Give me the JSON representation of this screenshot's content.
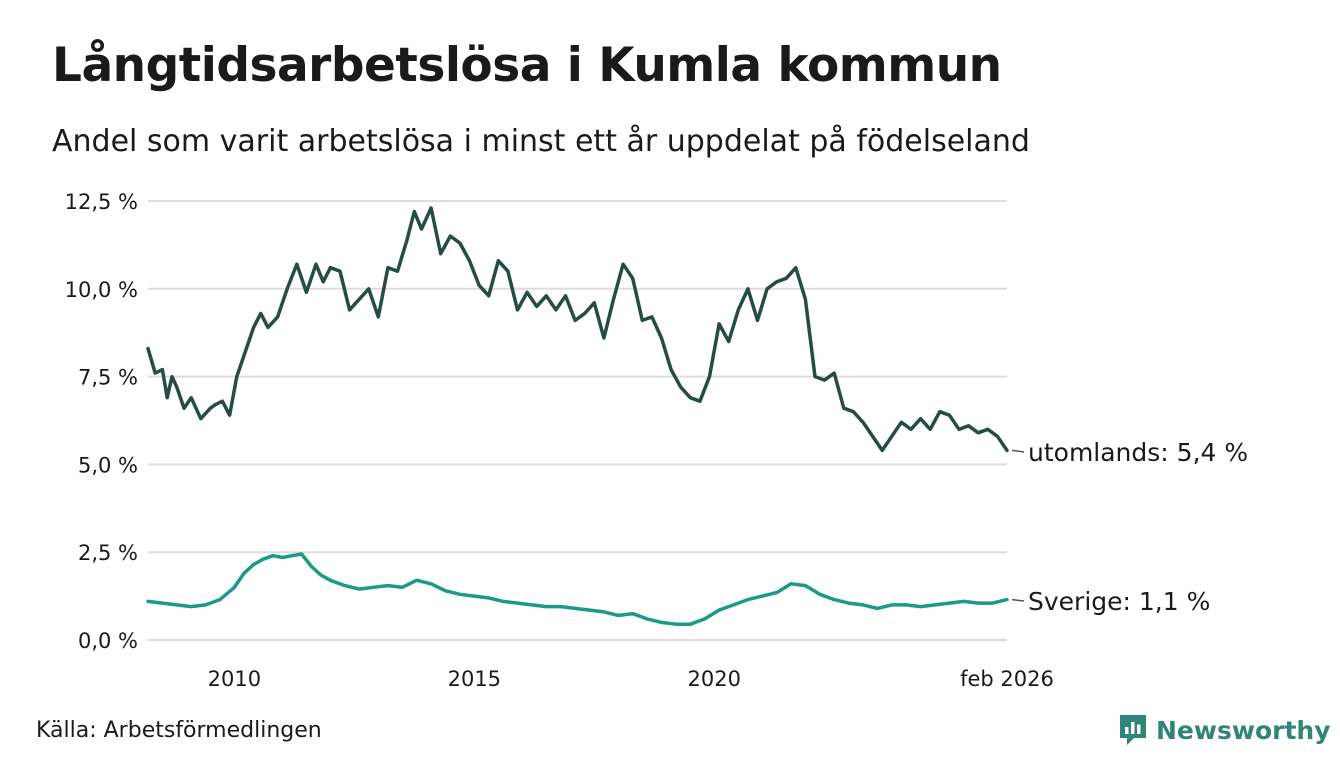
{
  "header": {
    "title": "Långtidsarbetslösa i Kumla kommun",
    "subtitle": "Andel som varit arbetslösa i minst ett år uppdelat på födelseland"
  },
  "footer": {
    "source": "Källa: Arbetsförmedlingen",
    "brand": "Newsworthy"
  },
  "colors": {
    "series_utomlands": "#264d45",
    "series_sverige": "#1b9a88",
    "grid": "#dddddd",
    "brand": "#2f8577"
  },
  "chart_data": {
    "type": "line",
    "title": "Långtidsarbetslösa i Kumla kommun",
    "xlabel": "",
    "ylabel": "",
    "grid": true,
    "xlim": [
      2008.2,
      2026.1
    ],
    "ylim": [
      0,
      12.5
    ],
    "y_ticks": [
      0,
      2.5,
      5,
      7.5,
      10,
      12.5
    ],
    "y_tick_labels": [
      "0,0 %",
      "2,5 %",
      "5,0 %",
      "7,5 %",
      "10,0 %",
      "12,5 %"
    ],
    "x_ticks": [
      2010,
      2015,
      2020,
      2026.1
    ],
    "x_tick_labels": [
      "2010",
      "2015",
      "2020",
      "feb 2026"
    ],
    "series": [
      {
        "name": "utomlands",
        "label": "utomlands: 5,4 %",
        "x": [
          2008.2,
          2008.35,
          2008.5,
          2008.6,
          2008.7,
          2008.8,
          2008.95,
          2009.1,
          2009.3,
          2009.5,
          2009.6,
          2009.75,
          2009.9,
          2010.05,
          2010.25,
          2010.4,
          2010.55,
          2010.7,
          2010.9,
          2011.0,
          2011.1,
          2011.3,
          2011.5,
          2011.7,
          2011.85,
          2012.0,
          2012.2,
          2012.4,
          2012.6,
          2012.8,
          2013.0,
          2013.2,
          2013.4,
          2013.6,
          2013.75,
          2013.9,
          2014.1,
          2014.3,
          2014.5,
          2014.7,
          2014.9,
          2015.1,
          2015.3,
          2015.5,
          2015.7,
          2015.9,
          2016.1,
          2016.3,
          2016.5,
          2016.7,
          2016.9,
          2017.1,
          2017.3,
          2017.5,
          2017.7,
          2017.9,
          2018.1,
          2018.3,
          2018.5,
          2018.7,
          2018.9,
          2019.1,
          2019.3,
          2019.5,
          2019.7,
          2019.9,
          2020.1,
          2020.3,
          2020.5,
          2020.7,
          2020.9,
          2021.1,
          2021.3,
          2021.5,
          2021.7,
          2021.9,
          2022.1,
          2022.3,
          2022.5,
          2022.7,
          2022.9,
          2023.1,
          2023.3,
          2023.5,
          2023.7,
          2023.9,
          2024.1,
          2024.3,
          2024.5,
          2024.7,
          2024.9,
          2025.1,
          2025.3,
          2025.5,
          2025.7,
          2025.9,
          2026.1
        ],
        "values": [
          8.3,
          7.6,
          7.7,
          6.9,
          7.5,
          7.2,
          6.6,
          6.9,
          6.3,
          6.6,
          6.7,
          6.8,
          6.4,
          7.5,
          8.3,
          8.9,
          9.3,
          8.9,
          9.2,
          9.6,
          10.0,
          10.7,
          9.9,
          10.7,
          10.2,
          10.6,
          10.5,
          9.4,
          9.7,
          10.0,
          9.2,
          10.6,
          10.5,
          11.4,
          12.2,
          11.7,
          12.3,
          11.0,
          11.5,
          11.3,
          10.8,
          10.1,
          9.8,
          10.8,
          10.5,
          9.4,
          9.9,
          9.5,
          9.8,
          9.4,
          9.8,
          9.1,
          9.3,
          9.6,
          8.6,
          9.7,
          10.7,
          10.3,
          9.1,
          9.2,
          8.6,
          7.7,
          7.2,
          6.9,
          6.8,
          7.5,
          9.0,
          8.5,
          9.4,
          10.0,
          9.1,
          10.0,
          10.2,
          10.3,
          10.6,
          9.7,
          7.5,
          7.4,
          7.6,
          6.6,
          6.5,
          6.2,
          5.8,
          5.4,
          5.8,
          6.2,
          6.0,
          6.3,
          6.0,
          6.5,
          6.4,
          6.0,
          6.1,
          5.9,
          6.0,
          5.8,
          5.4
        ]
      },
      {
        "name": "Sverige",
        "label": "Sverige: 1,1 %",
        "x": [
          2008.2,
          2008.5,
          2008.8,
          2009.1,
          2009.4,
          2009.7,
          2010.0,
          2010.2,
          2010.4,
          2010.6,
          2010.8,
          2011.0,
          2011.2,
          2011.4,
          2011.6,
          2011.8,
          2012.0,
          2012.3,
          2012.6,
          2012.9,
          2013.2,
          2013.5,
          2013.8,
          2014.1,
          2014.4,
          2014.7,
          2015.0,
          2015.3,
          2015.6,
          2015.9,
          2016.2,
          2016.5,
          2016.8,
          2017.1,
          2017.4,
          2017.7,
          2018.0,
          2018.3,
          2018.6,
          2018.9,
          2019.2,
          2019.5,
          2019.8,
          2020.1,
          2020.4,
          2020.7,
          2021.0,
          2021.3,
          2021.6,
          2021.9,
          2022.2,
          2022.5,
          2022.8,
          2023.1,
          2023.4,
          2023.7,
          2024.0,
          2024.3,
          2024.6,
          2024.9,
          2025.2,
          2025.5,
          2025.8,
          2026.1
        ],
        "values": [
          1.1,
          1.05,
          1.0,
          0.95,
          1.0,
          1.15,
          1.5,
          1.9,
          2.15,
          2.3,
          2.4,
          2.35,
          2.4,
          2.45,
          2.1,
          1.85,
          1.7,
          1.55,
          1.45,
          1.5,
          1.55,
          1.5,
          1.7,
          1.6,
          1.4,
          1.3,
          1.25,
          1.2,
          1.1,
          1.05,
          1.0,
          0.95,
          0.95,
          0.9,
          0.85,
          0.8,
          0.7,
          0.75,
          0.6,
          0.5,
          0.45,
          0.45,
          0.6,
          0.85,
          1.0,
          1.15,
          1.25,
          1.35,
          1.6,
          1.55,
          1.3,
          1.15,
          1.05,
          1.0,
          0.9,
          1.0,
          1.0,
          0.95,
          1.0,
          1.05,
          1.1,
          1.05,
          1.05,
          1.15
        ]
      }
    ]
  }
}
